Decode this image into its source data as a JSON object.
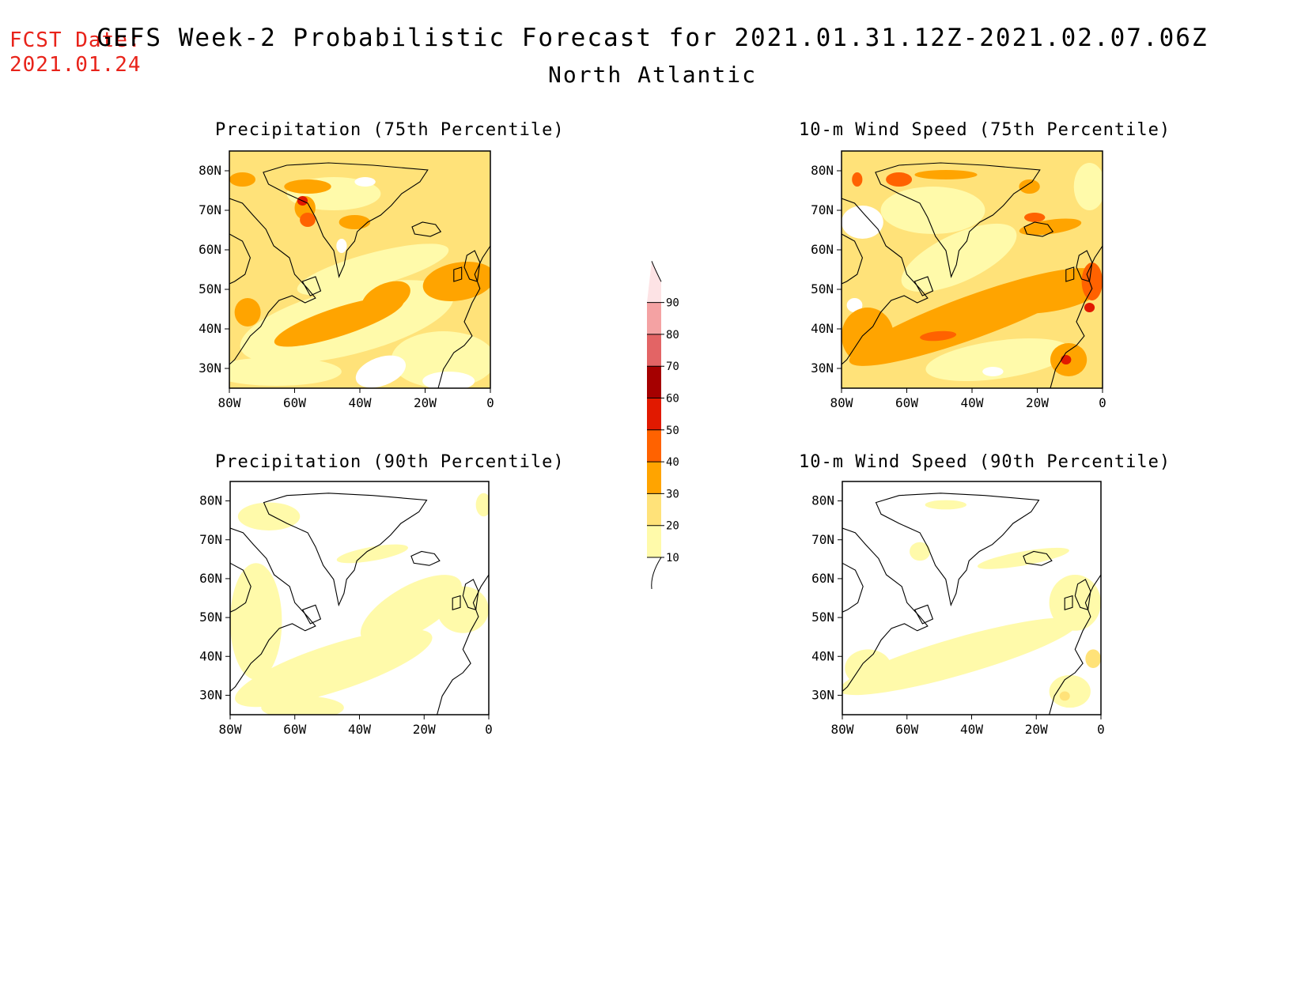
{
  "header": {
    "fcst_label": "FCST Date:",
    "fcst_date": "2021.01.24",
    "title": "GEFS Week-2 Probabilistic Forecast for 2021.01.31.12Z-2021.02.07.06Z",
    "subtitle": "North Atlantic"
  },
  "panels": [
    {
      "id": "precip75",
      "title": "Precipitation (75th Percentile)"
    },
    {
      "id": "wind75",
      "title": "10-m Wind Speed (75th Percentile)"
    },
    {
      "id": "precip90",
      "title": "Precipitation (90th Percentile)"
    },
    {
      "id": "wind90",
      "title": "10-m Wind Speed (90th Percentile)"
    }
  ],
  "axes": {
    "lat_labels": [
      "80N",
      "70N",
      "60N",
      "50N",
      "40N",
      "30N"
    ],
    "lon_labels": [
      "80W",
      "60W",
      "40W",
      "20W",
      "0"
    ]
  },
  "colorbar": {
    "levels": [
      "10",
      "20",
      "30",
      "40",
      "50",
      "60",
      "70",
      "80",
      "90"
    ],
    "colors": [
      "#fffaaa",
      "#ffe279",
      "#ffa400",
      "#ff6200",
      "#e11900",
      "#a50000",
      "#e36465",
      "#f4a2a3",
      "#fde3e5"
    ]
  },
  "legend_colors": {
    "light_yellow": "#fffaaa",
    "yellow": "#ffe279",
    "orange": "#ffa400",
    "dark_orange": "#ff6200",
    "red": "#e11900",
    "dark_red": "#a50000",
    "coast": "#000000"
  }
}
